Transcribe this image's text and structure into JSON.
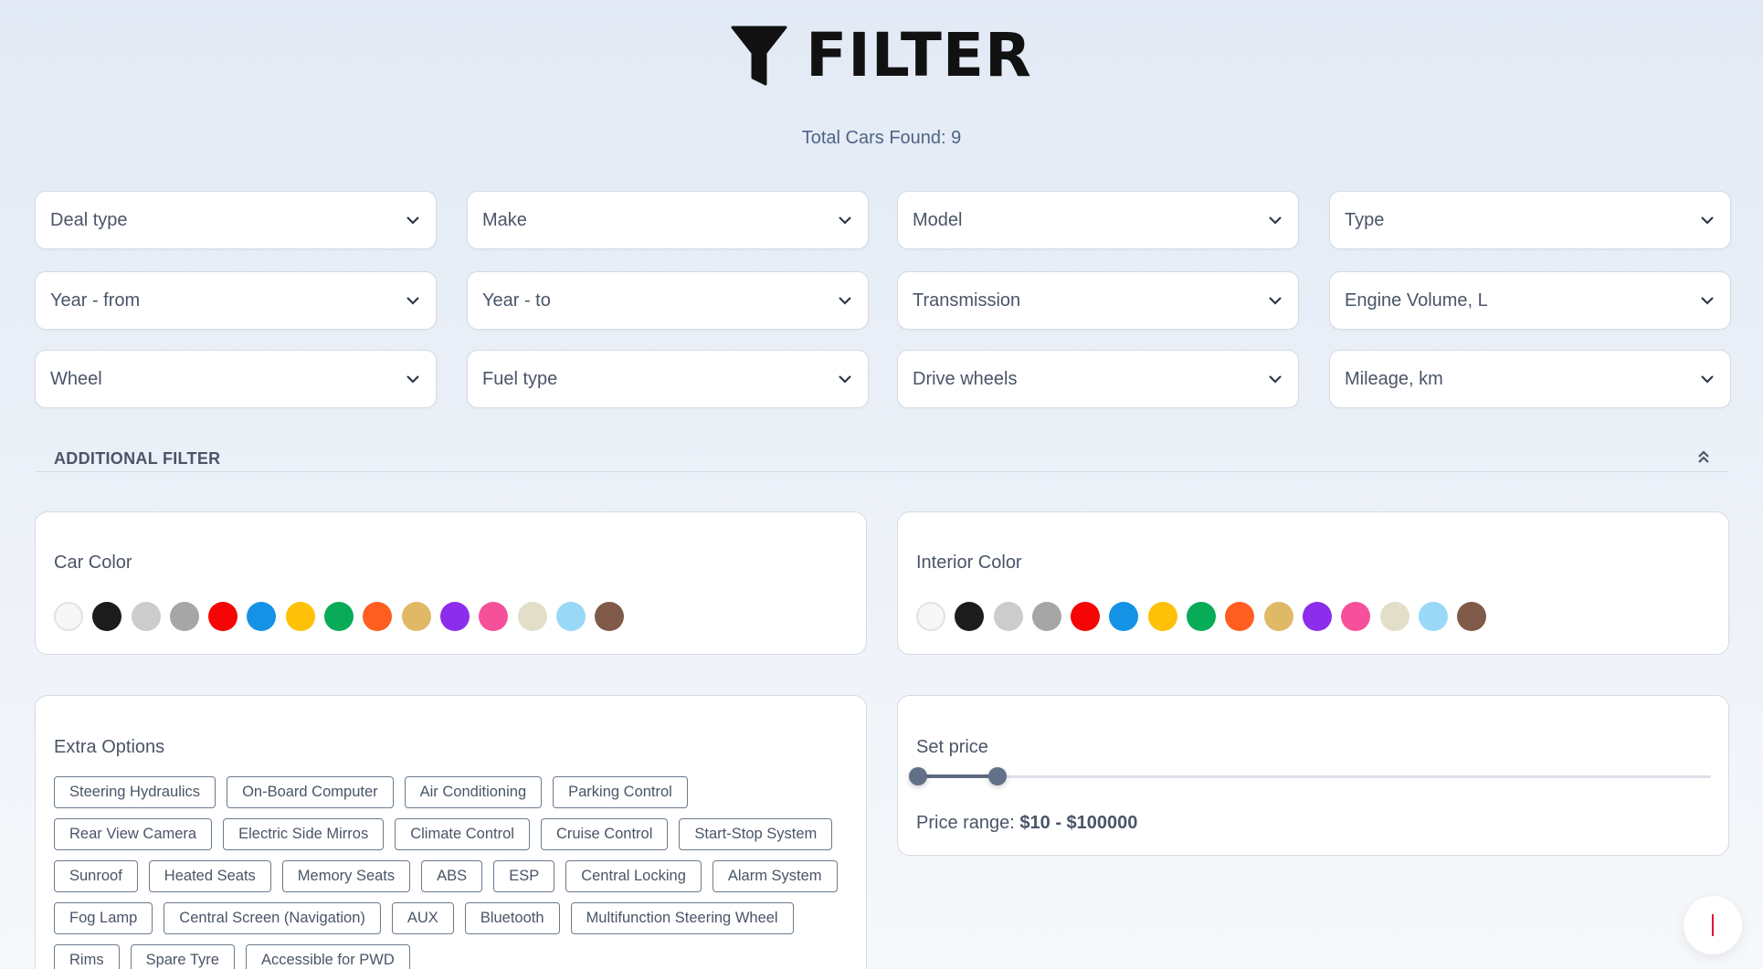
{
  "header": {
    "title": "FILTER",
    "icon": "funnel-icon",
    "total_label": "Total Cars Found: 9"
  },
  "dropdowns": [
    "Deal type",
    "Make",
    "Model",
    "Type",
    "Year - from",
    "Year - to",
    "Transmission",
    "Engine Volume, L",
    "Wheel",
    "Fuel type",
    "Drive wheels",
    "Mileage, km"
  ],
  "additional_filter": {
    "title": "ADDITIONAL FILTER",
    "toggle_icon": "chevron-double-up-icon"
  },
  "car_color": {
    "label": "Car Color",
    "colors": [
      "#f7f7f7",
      "#1c1c1c",
      "#cccccc",
      "#a6a6a6",
      "#f50505",
      "#1492e6",
      "#ffc107",
      "#08ab58",
      "#ff5e20",
      "#e0b966",
      "#8c2deb",
      "#f7509a",
      "#e3dec8",
      "#99d8f7",
      "#805a48"
    ]
  },
  "interior_color": {
    "label": "Interior Color",
    "colors": [
      "#f7f7f7",
      "#1c1c1c",
      "#cccccc",
      "#a6a6a6",
      "#f50505",
      "#1492e6",
      "#ffc107",
      "#08ab58",
      "#ff5e20",
      "#e0b966",
      "#8c2deb",
      "#f7509a",
      "#e3dec8",
      "#99d8f7",
      "#805a48"
    ]
  },
  "extra_options": {
    "label": "Extra Options",
    "rows": [
      [
        "Steering Hydraulics",
        "On-Board Computer",
        "Air Conditioning",
        "Parking Control"
      ],
      [
        "Rear View Camera",
        "Electric Side Mirros",
        "Climate Control",
        "Cruise Control",
        "Start-Stop System"
      ],
      [
        "Sunroof",
        "Heated Seats",
        "Memory Seats",
        "ABS",
        "ESP",
        "Central Locking",
        "Alarm System"
      ],
      [
        "Fog Lamp",
        "Central Screen (Navigation)",
        "AUX",
        "Bluetooth",
        "Multifunction Steering Wheel"
      ],
      [
        "Rims",
        "Spare Tyre",
        "Accessible for PWD"
      ]
    ]
  },
  "price": {
    "label": "Set price",
    "range_prefix": "Price range:",
    "range_value": "$10 - $100000",
    "low": 10,
    "high": 100000
  },
  "accent_colors": {
    "slider": "#627187",
    "fab_mark": "#e0123d"
  }
}
